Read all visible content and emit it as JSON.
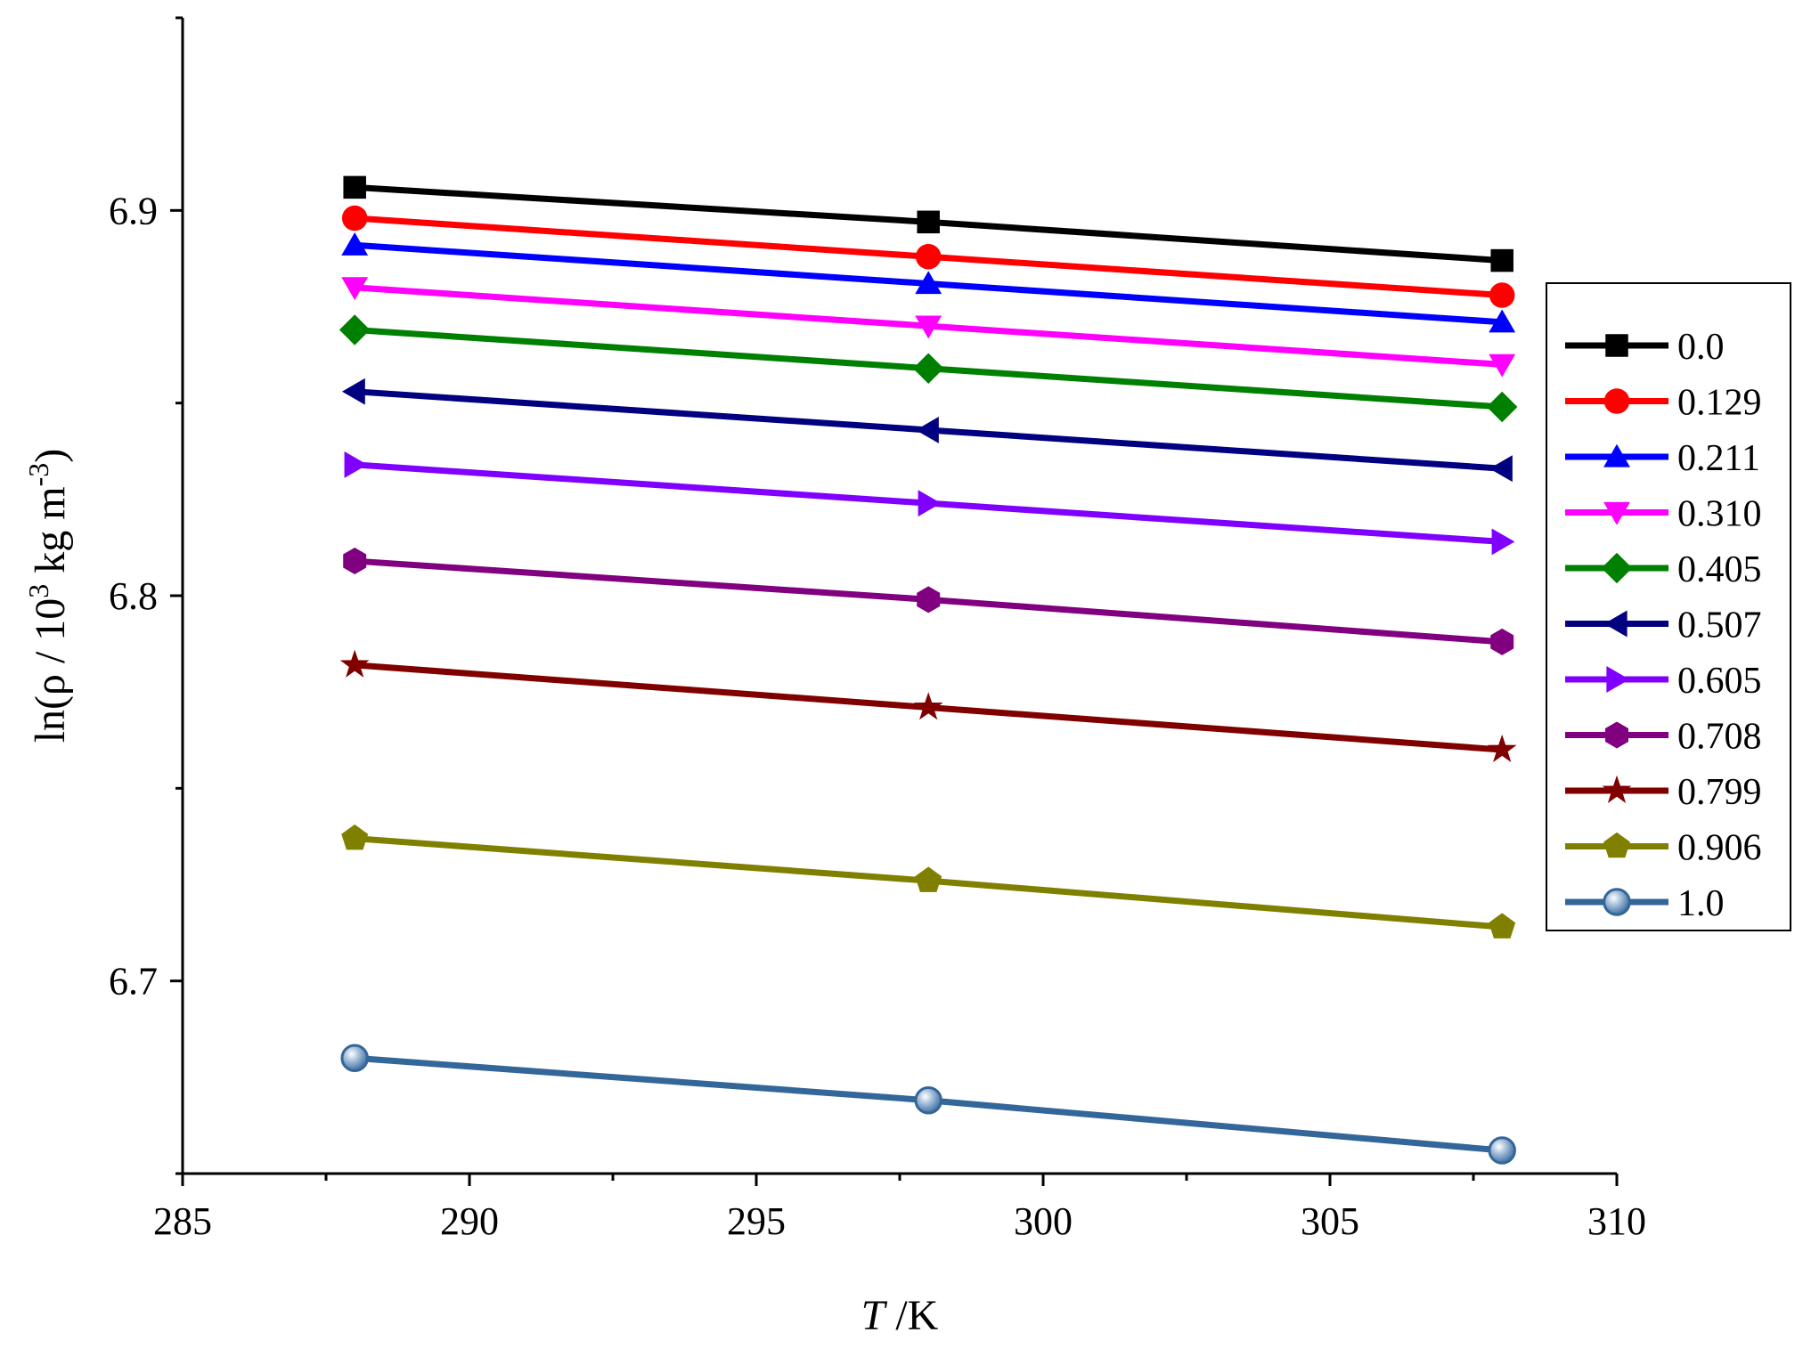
{
  "chart_data": {
    "type": "line",
    "xlabel_italic": "T",
    "xlabel_rest": " /K",
    "ylabel_main": "ln(ρ / 10",
    "ylabel_sup1": "3",
    "ylabel_mid": " kg m",
    "ylabel_sup2": "-3",
    "ylabel_end": ")",
    "xlim": [
      285,
      310
    ],
    "ylim": [
      6.65,
      6.95
    ],
    "xticks": [
      285,
      290,
      295,
      300,
      305,
      310
    ],
    "xtick_labels": [
      "285",
      "290",
      "295",
      "300",
      "305",
      "310"
    ],
    "yticks": [
      6.7,
      6.8,
      6.9
    ],
    "ytick_labels": [
      "6.7",
      "6.8",
      "6.9"
    ],
    "x": [
      288,
      298,
      308
    ],
    "legend_position": "right",
    "series": [
      {
        "name": "0.0",
        "color": "#000000",
        "marker": "square",
        "values": [
          6.906,
          6.897,
          6.887
        ]
      },
      {
        "name": "0.129",
        "color": "#ff0000",
        "marker": "circle",
        "values": [
          6.898,
          6.888,
          6.878
        ]
      },
      {
        "name": "0.211",
        "color": "#0000ff",
        "marker": "triangle-up",
        "values": [
          6.891,
          6.881,
          6.871
        ]
      },
      {
        "name": "0.310",
        "color": "#ff00ff",
        "marker": "triangle-down",
        "values": [
          6.88,
          6.87,
          6.86
        ]
      },
      {
        "name": "0.405",
        "color": "#008000",
        "marker": "diamond",
        "values": [
          6.869,
          6.859,
          6.849
        ]
      },
      {
        "name": "0.507",
        "color": "#000080",
        "marker": "triangle-left",
        "values": [
          6.853,
          6.843,
          6.833
        ]
      },
      {
        "name": "0.605",
        "color": "#8000ff",
        "marker": "triangle-right",
        "values": [
          6.834,
          6.824,
          6.814
        ]
      },
      {
        "name": "0.708",
        "color": "#800080",
        "marker": "hexagon",
        "values": [
          6.809,
          6.799,
          6.788
        ]
      },
      {
        "name": "0.799",
        "color": "#800000",
        "marker": "star",
        "values": [
          6.782,
          6.771,
          6.76
        ]
      },
      {
        "name": "0.906",
        "color": "#808000",
        "marker": "pentagon",
        "values": [
          6.737,
          6.726,
          6.714
        ]
      },
      {
        "name": "1.0",
        "color": "#336699",
        "marker": "sphere",
        "values": [
          6.68,
          6.669,
          6.656
        ]
      }
    ]
  }
}
